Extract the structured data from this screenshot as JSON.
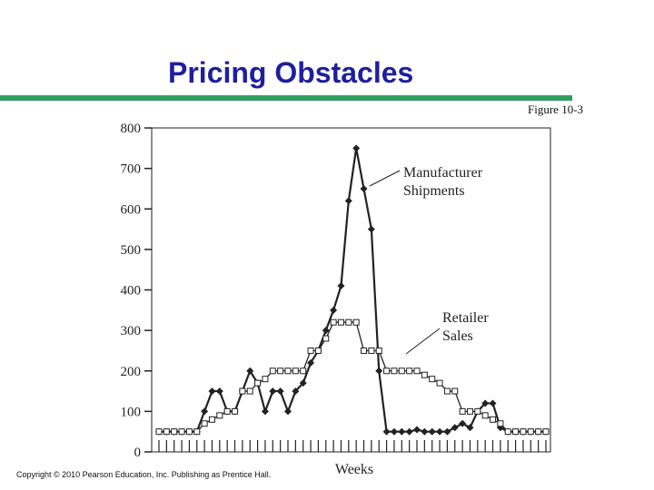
{
  "slide": {
    "title": "Pricing Obstacles",
    "figure_label": "Figure 10-3",
    "copyright": "Copyright © 2010 Pearson Education, Inc. Publishing as Prentice Hall."
  },
  "colors": {
    "title": "#1f1f9e",
    "rule": "#2f9e5e",
    "series": "#222222"
  },
  "chart_data": {
    "type": "line",
    "title": "",
    "xlabel": "Weeks",
    "ylabel": "",
    "ylim": [
      0,
      800
    ],
    "yticks": [
      0,
      100,
      200,
      300,
      400,
      500,
      600,
      700,
      800
    ],
    "x_count": 52,
    "grid": false,
    "annotations": [
      {
        "series": "Manufacturer Shipments",
        "lines": [
          "Manufacturer",
          "Shipments"
        ]
      },
      {
        "series": "Retailer Sales",
        "lines": [
          "Retailer",
          "Sales"
        ]
      }
    ],
    "series": [
      {
        "name": "Manufacturer Shipments",
        "marker": "filled-diamond",
        "values": [
          50,
          50,
          50,
          50,
          50,
          50,
          100,
          150,
          150,
          100,
          100,
          150,
          200,
          170,
          100,
          150,
          150,
          100,
          150,
          170,
          220,
          250,
          300,
          350,
          410,
          620,
          750,
          650,
          550,
          200,
          50,
          50,
          50,
          50,
          55,
          50,
          50,
          50,
          50,
          60,
          70,
          60,
          100,
          120,
          120,
          60,
          50,
          50,
          50,
          50,
          50,
          50
        ]
      },
      {
        "name": "Retailer Sales",
        "marker": "open-square",
        "values": [
          50,
          50,
          50,
          50,
          50,
          50,
          70,
          80,
          90,
          100,
          100,
          150,
          150,
          170,
          180,
          200,
          200,
          200,
          200,
          200,
          250,
          250,
          280,
          320,
          320,
          320,
          320,
          250,
          250,
          250,
          200,
          200,
          200,
          200,
          200,
          190,
          180,
          170,
          150,
          150,
          100,
          100,
          100,
          90,
          80,
          70,
          50,
          50,
          50,
          50,
          50,
          50
        ]
      }
    ]
  }
}
